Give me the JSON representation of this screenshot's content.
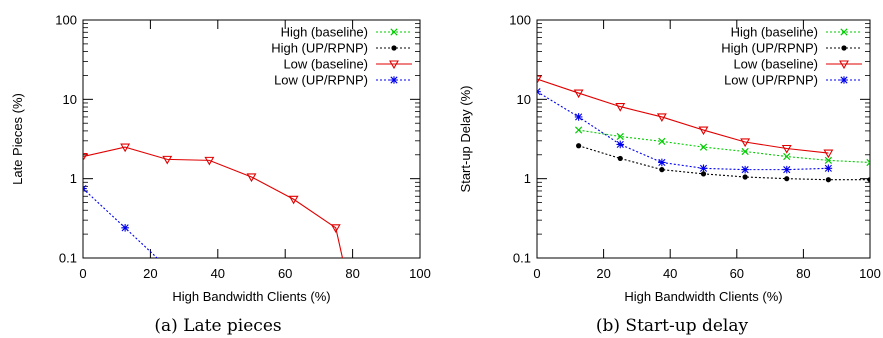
{
  "chart_data": [
    {
      "type": "line",
      "caption": "(a) Late pieces",
      "xlabel": "High Bandwidth Clients (%)",
      "ylabel": "Late Pieces (%)",
      "xlim": [
        0,
        100
      ],
      "ylim": [
        0.1,
        100
      ],
      "yscale": "log",
      "xticks": [
        "0",
        "20",
        "40",
        "60",
        "80",
        "100"
      ],
      "yticks": [
        "0.1",
        "1",
        "10",
        "100"
      ],
      "legend_position": "top-right",
      "series": [
        {
          "name": "High (baseline)",
          "color": "#00cc00",
          "marker": "x",
          "x": [],
          "y": []
        },
        {
          "name": "High (UP/RPNP)",
          "color": "#000000",
          "marker": "dot",
          "x": [],
          "y": []
        },
        {
          "name": "Low (baseline)",
          "color": "#e00000",
          "marker": "triangle-down",
          "x": [
            0,
            12.5,
            25,
            37.5,
            50,
            62.5,
            75,
            77
          ],
          "y": [
            1.9,
            2.5,
            1.75,
            1.7,
            1.05,
            0.55,
            0.24,
            0.1
          ]
        },
        {
          "name": "Low (UP/RPNP)",
          "color": "#0000ee",
          "marker": "star",
          "x": [
            0,
            12.5,
            22
          ],
          "y": [
            0.75,
            0.24,
            0.1
          ]
        }
      ]
    },
    {
      "type": "line",
      "caption": "(b) Start-up delay",
      "xlabel": "High Bandwidth Clients (%)",
      "ylabel": "Start-up Delay (%)",
      "xlim": [
        0,
        100
      ],
      "ylim": [
        0.1,
        100
      ],
      "yscale": "log",
      "xticks": [
        "0",
        "20",
        "40",
        "60",
        "80",
        "100"
      ],
      "yticks": [
        "0.1",
        "1",
        "10",
        "100"
      ],
      "legend_position": "top-right",
      "series": [
        {
          "name": "High (baseline)",
          "color": "#00cc00",
          "marker": "x",
          "x": [
            12.5,
            25,
            37.5,
            50,
            62.5,
            75,
            87.5,
            100
          ],
          "y": [
            4.1,
            3.4,
            2.95,
            2.5,
            2.2,
            1.9,
            1.7,
            1.6
          ]
        },
        {
          "name": "High (UP/RPNP)",
          "color": "#000000",
          "marker": "dot",
          "x": [
            12.5,
            25,
            37.5,
            50,
            62.5,
            75,
            87.5,
            100
          ],
          "y": [
            2.6,
            1.8,
            1.3,
            1.15,
            1.05,
            1.0,
            0.97,
            0.97
          ]
        },
        {
          "name": "Low (baseline)",
          "color": "#e00000",
          "marker": "triangle-down",
          "x": [
            0,
            12.5,
            25,
            37.5,
            50,
            62.5,
            75,
            87.5
          ],
          "y": [
            18,
            12,
            8.1,
            6.0,
            4.1,
            2.9,
            2.4,
            2.1
          ]
        },
        {
          "name": "Low (UP/RPNP)",
          "color": "#0000ee",
          "marker": "star",
          "x": [
            0,
            12.5,
            25,
            37.5,
            50,
            62.5,
            75,
            87.5
          ],
          "y": [
            12.5,
            6.0,
            2.7,
            1.6,
            1.35,
            1.3,
            1.3,
            1.35
          ]
        }
      ]
    }
  ]
}
